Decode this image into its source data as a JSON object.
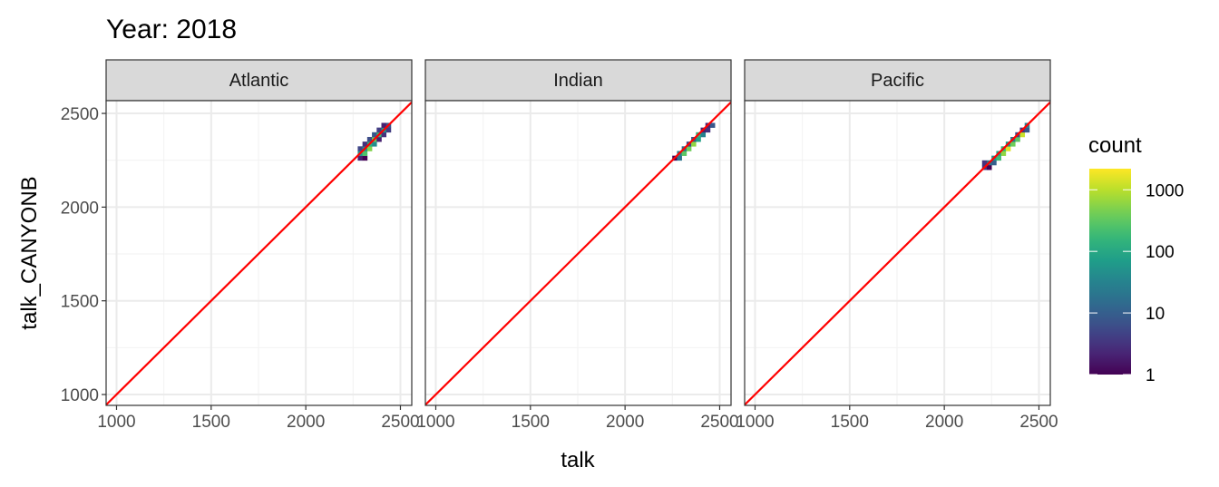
{
  "chart_data": {
    "type": "heatmap",
    "title": "Year: 2018",
    "xlabel": "talk",
    "ylabel": "talk_CANYONB",
    "xlim": [
      945,
      2560
    ],
    "ylim": [
      942,
      2568
    ],
    "xticks": [
      1000,
      1500,
      2000,
      2500
    ],
    "yticks": [
      1000,
      1500,
      2000,
      2500
    ],
    "grid": true,
    "reference_line": {
      "slope": 1,
      "intercept": 0,
      "color": "#FF0000"
    },
    "legend": {
      "title": "count",
      "scale": "log10",
      "range": [
        1,
        2200
      ],
      "ticks": [
        1,
        10,
        100,
        1000
      ],
      "palette": "viridis",
      "placement": "right"
    },
    "bin_width": 25,
    "facets": [
      {
        "label": "Atlantic",
        "bins": [
          [
            2287,
            2262,
            2
          ],
          [
            2287,
            2287,
            60
          ],
          [
            2287,
            2312,
            5
          ],
          [
            2312,
            2262,
            1
          ],
          [
            2312,
            2287,
            250
          ],
          [
            2312,
            2312,
            40
          ],
          [
            2312,
            2337,
            3
          ],
          [
            2337,
            2312,
            500
          ],
          [
            2337,
            2337,
            120
          ],
          [
            2337,
            2362,
            6
          ],
          [
            2362,
            2337,
            40
          ],
          [
            2362,
            2362,
            350
          ],
          [
            2362,
            2387,
            8
          ],
          [
            2387,
            2362,
            2
          ],
          [
            2387,
            2387,
            180
          ],
          [
            2387,
            2412,
            4
          ],
          [
            2412,
            2387,
            3
          ],
          [
            2412,
            2412,
            60
          ],
          [
            2412,
            2437,
            2
          ],
          [
            2437,
            2437,
            8
          ],
          [
            2437,
            2412,
            4
          ]
        ]
      },
      {
        "label": "Indian",
        "bins": [
          [
            2262,
            2262,
            1
          ],
          [
            2287,
            2262,
            20
          ],
          [
            2287,
            2287,
            30
          ],
          [
            2312,
            2287,
            300
          ],
          [
            2312,
            2312,
            15
          ],
          [
            2337,
            2312,
            400
          ],
          [
            2337,
            2337,
            5
          ],
          [
            2362,
            2337,
            600
          ],
          [
            2362,
            2362,
            8
          ],
          [
            2387,
            2362,
            80
          ],
          [
            2387,
            2387,
            150
          ],
          [
            2412,
            2387,
            30
          ],
          [
            2412,
            2412,
            2
          ],
          [
            2437,
            2412,
            3
          ],
          [
            2437,
            2437,
            2
          ],
          [
            2462,
            2437,
            8
          ]
        ]
      },
      {
        "label": "Pacific",
        "bins": [
          [
            2212,
            2212,
            3
          ],
          [
            2212,
            2237,
            3
          ],
          [
            2237,
            2212,
            1
          ],
          [
            2237,
            2237,
            20
          ],
          [
            2262,
            2237,
            10
          ],
          [
            2262,
            2262,
            50
          ],
          [
            2287,
            2262,
            200
          ],
          [
            2287,
            2287,
            80
          ],
          [
            2312,
            2287,
            600
          ],
          [
            2312,
            2312,
            150
          ],
          [
            2337,
            2312,
            1500
          ],
          [
            2337,
            2337,
            60
          ],
          [
            2362,
            2337,
            400
          ],
          [
            2362,
            2362,
            20
          ],
          [
            2387,
            2362,
            300
          ],
          [
            2387,
            2387,
            5
          ],
          [
            2412,
            2387,
            1200
          ],
          [
            2412,
            2412,
            3
          ],
          [
            2437,
            2412,
            8
          ],
          [
            2437,
            2437,
            30
          ]
        ]
      }
    ]
  }
}
